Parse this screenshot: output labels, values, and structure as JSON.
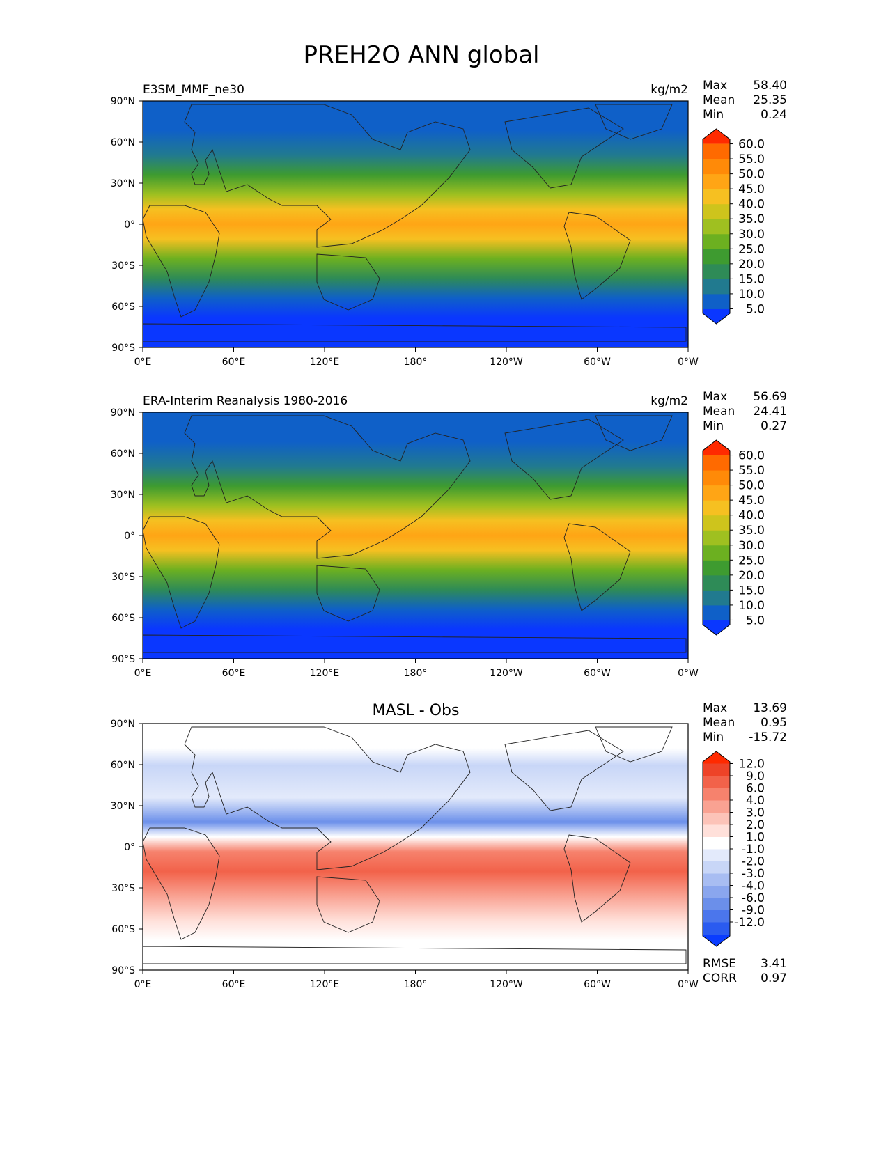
{
  "figure": {
    "title": "PREH2O ANN global"
  },
  "axes": {
    "lat_ticks": [
      "90°N",
      "60°N",
      "30°N",
      "0°",
      "30°S",
      "60°S",
      "90°S"
    ],
    "lon_ticks": [
      "0°E",
      "60°E",
      "120°E",
      "180°",
      "120°W",
      "60°W",
      "0°W"
    ]
  },
  "panels": [
    {
      "name": "test",
      "label": "E3SM_MMF_ne30",
      "units": "kg/m2",
      "stats": [
        {
          "label": "Max",
          "value": "58.40"
        },
        {
          "label": "Mean",
          "value": "25.35"
        },
        {
          "label": "Min",
          "value": "0.24"
        }
      ],
      "colorbar": {
        "colors": [
          "#0a37ff",
          "#0f60c8",
          "#217a8f",
          "#2e8b57",
          "#3e9b30",
          "#6cb020",
          "#9fc020",
          "#cec41c",
          "#f6c021",
          "#ffa515",
          "#ff8a08",
          "#ff6a00",
          "#ff2a00"
        ],
        "labels": [
          "60.0",
          "55.0",
          "50.0",
          "45.0",
          "40.0",
          "35.0",
          "30.0",
          "25.0",
          "20.0",
          "15.0",
          "10.0",
          "5.0"
        ]
      }
    },
    {
      "name": "reference",
      "label": "ERA-Interim Reanalysis 1980-2016",
      "units": "kg/m2",
      "stats": [
        {
          "label": "Max",
          "value": "56.69"
        },
        {
          "label": "Mean",
          "value": "24.41"
        },
        {
          "label": "Min",
          "value": "0.27"
        }
      ],
      "colorbar": {
        "colors": [
          "#0a37ff",
          "#0f60c8",
          "#217a8f",
          "#2e8b57",
          "#3e9b30",
          "#6cb020",
          "#9fc020",
          "#cec41c",
          "#f6c021",
          "#ffa515",
          "#ff8a08",
          "#ff6a00",
          "#ff2a00"
        ],
        "labels": [
          "60.0",
          "55.0",
          "50.0",
          "45.0",
          "40.0",
          "35.0",
          "30.0",
          "25.0",
          "20.0",
          "15.0",
          "10.0",
          "5.0"
        ]
      }
    },
    {
      "name": "difference",
      "title": "MASL - Obs",
      "stats": [
        {
          "label": "Max",
          "value": "13.69"
        },
        {
          "label": "Mean",
          "value": "0.95"
        },
        {
          "label": "Min",
          "value": "-15.72"
        }
      ],
      "metrics": [
        {
          "label": "RMSE",
          "value": "3.41"
        },
        {
          "label": "CORR",
          "value": "0.97"
        }
      ],
      "colorbar": {
        "colors": [
          "#0a3cff",
          "#2a5bf0",
          "#4b76ec",
          "#6b8fea",
          "#8aa6ee",
          "#a8bdf2",
          "#c8d6f7",
          "#e3eafb",
          "#ffffff",
          "#ffe0da",
          "#fcc3b8",
          "#f9a292",
          "#f6826d",
          "#f2624a",
          "#ee4328",
          "#ff2a00"
        ],
        "labels": [
          "12.0",
          "9.0",
          "6.0",
          "4.0",
          "3.0",
          "2.0",
          "1.0",
          "-1.0",
          "-2.0",
          "-3.0",
          "-4.0",
          "-6.0",
          "-9.0",
          "-12.0"
        ]
      }
    }
  ]
}
